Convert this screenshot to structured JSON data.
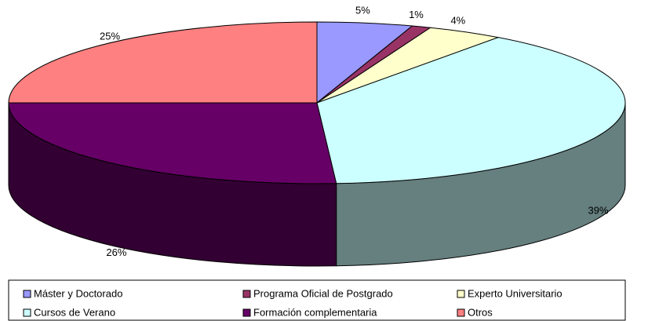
{
  "chart_data": {
    "type": "pie",
    "categories": [
      "Máster y Doctorado",
      "Programa Oficial de Postgrado",
      "Experto Universitario",
      "Cursos de Verano",
      "Formación complementaria",
      "Otros"
    ],
    "values": [
      5,
      1,
      4,
      39,
      26,
      25
    ],
    "value_labels": [
      "5%",
      "1%",
      "4%",
      "39%",
      "26%",
      "25%"
    ],
    "colors": [
      "#9999ff",
      "#993366",
      "#ffffcc",
      "#ccffff",
      "#660066",
      "#ff8080"
    ]
  }
}
